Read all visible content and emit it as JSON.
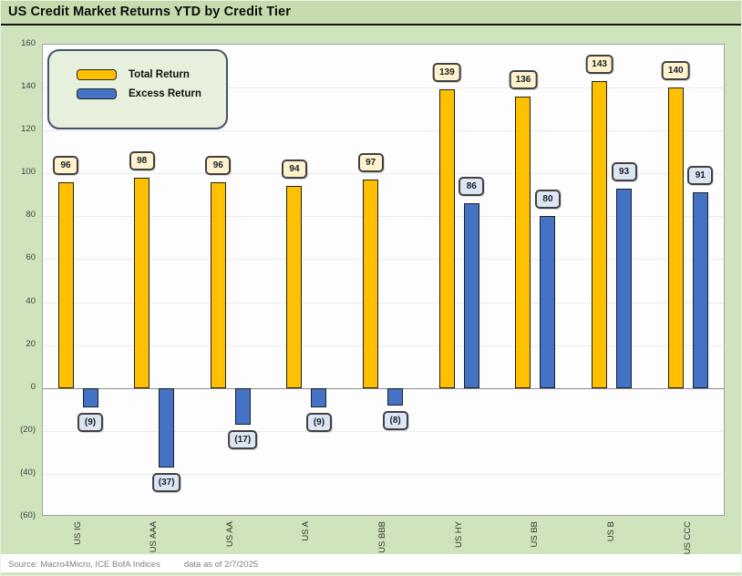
{
  "title": "US Credit Market Returns YTD by Credit Tier",
  "footer": {
    "source": "Source: Macro4Micro, ICE BofA Indices",
    "asof": "data as of 2/7/2025"
  },
  "colors": {
    "page_bg": "#CFE4BC",
    "titlebar_bg": "#C6DCAE",
    "total_return": "#FFC000",
    "excess_return": "#4472C4",
    "total_label_bg": "#FFF2CC",
    "excess_label_bg": "#DCE5F2",
    "legend_bg": "#E6F0DC",
    "legend_border": "#44546A",
    "gridline": "#EBEBEB",
    "zero_line": "#8C8C8C"
  },
  "chart_data": {
    "type": "bar",
    "title": "US Credit Market Returns YTD by Credit Tier",
    "categories": [
      "US IG",
      "US AAA",
      "US AA",
      "US A",
      "US BBB",
      "US HY",
      "US BB",
      "US B",
      "US CCC"
    ],
    "series": [
      {
        "name": "Total Return",
        "color": "#FFC000",
        "label_bg": "#FFF2CC",
        "values": [
          96,
          98,
          96,
          94,
          97,
          139,
          136,
          143,
          140
        ]
      },
      {
        "name": "Excess Return",
        "color": "#4472C4",
        "label_bg": "#DCE5F2",
        "values": [
          -9,
          -37,
          -17,
          -9,
          -8,
          86,
          80,
          93,
          91
        ]
      }
    ],
    "data_labels": [
      "96",
      "98",
      "96",
      "94",
      "97",
      "139",
      "136",
      "143",
      "140",
      "(9)",
      "(37)",
      "(17)",
      "(9)",
      "(8)",
      "86",
      "80",
      "93",
      "91"
    ],
    "data_label_format": "negative values shown in parentheses",
    "xlabel": "",
    "ylabel": "",
    "ylim": [
      -60,
      160
    ],
    "ytick_step": 20,
    "ytick_labels": [
      "160",
      "140",
      "120",
      "100",
      "80",
      "60",
      "40",
      "20",
      "0",
      "(20)",
      "(40)",
      "(60)"
    ],
    "grid": true,
    "legend_position": "top-left"
  }
}
